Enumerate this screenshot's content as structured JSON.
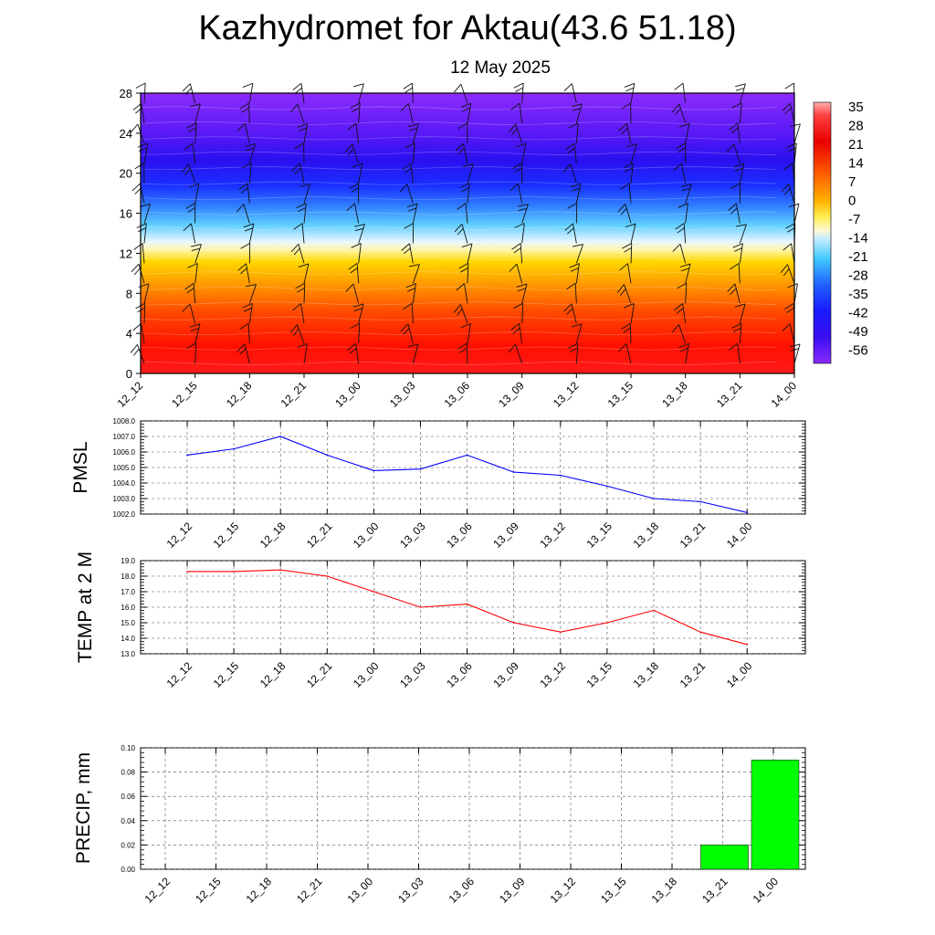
{
  "title": "Kazhydromet for Aktau(43.6 51.18)",
  "subtitle": "12 May 2025",
  "time_labels": [
    "12_12",
    "12_15",
    "12_18",
    "12_21",
    "13_00",
    "13_03",
    "13_06",
    "13_09",
    "13_12",
    "13_15",
    "13_18",
    "13_21",
    "14_00"
  ],
  "colorbar_labels": [
    "35",
    "28",
    "21",
    "14",
    "7",
    "0",
    "-7",
    "-14",
    "-21",
    "-28",
    "-35",
    "-42",
    "-49",
    "-56"
  ],
  "chart_data": [
    {
      "type": "heatmap",
      "ylim": [
        0,
        28
      ],
      "yticks": [
        "0",
        "4",
        "8",
        "12",
        "16",
        "20",
        "24",
        "28"
      ],
      "categories": [
        "12_12",
        "12_15",
        "12_18",
        "12_21",
        "13_00",
        "13_03",
        "13_06",
        "13_09",
        "13_12",
        "13_15",
        "13_18",
        "13_21",
        "14_00"
      ],
      "colorbar": [
        "35",
        "28",
        "21",
        "14",
        "7",
        "0",
        "-7",
        "-14",
        "-21",
        "-28",
        "-35",
        "-42",
        "-49",
        "-56"
      ]
    },
    {
      "type": "line",
      "ylabel": "PMSL",
      "ylim": [
        1002.0,
        1008.0
      ],
      "yticks": [
        "1002.0",
        "1003.0",
        "1004.0",
        "1005.0",
        "1006.0",
        "1007.0",
        "1008.0"
      ],
      "categories": [
        "12_12",
        "12_15",
        "12_18",
        "12_21",
        "13_00",
        "13_03",
        "13_06",
        "13_09",
        "13_12",
        "13_15",
        "13_18",
        "13_21",
        "14_00"
      ],
      "values": [
        1005.8,
        1006.2,
        1007.0,
        1005.8,
        1004.8,
        1004.9,
        1005.8,
        1004.7,
        1004.5,
        1003.8,
        1003.0,
        1002.8,
        1002.1
      ],
      "color": "#0000ff"
    },
    {
      "type": "line",
      "ylabel": "TEMP at 2 M",
      "ylim": [
        13.0,
        19.0
      ],
      "yticks": [
        "13.0",
        "14.0",
        "15.0",
        "16.0",
        "17.0",
        "18.0",
        "19.0"
      ],
      "categories": [
        "12_12",
        "12_15",
        "12_18",
        "12_21",
        "13_00",
        "13_03",
        "13_06",
        "13_09",
        "13_12",
        "13_15",
        "13_18",
        "13_21",
        "14_00"
      ],
      "values": [
        18.3,
        18.3,
        18.4,
        18.0,
        17.0,
        16.0,
        16.2,
        15.0,
        14.4,
        15.0,
        15.8,
        14.4,
        13.6
      ],
      "color": "#ff0000"
    },
    {
      "type": "bar",
      "ylabel": "PRECIP, mm",
      "ylim": [
        0,
        0.1
      ],
      "yticks": [
        "0.00",
        "0.02",
        "0.04",
        "0.06",
        "0.08",
        "0.10"
      ],
      "categories": [
        "12_12",
        "12_15",
        "12_18",
        "12_21",
        "13_00",
        "13_03",
        "13_06",
        "13_09",
        "13_12",
        "13_15",
        "13_18",
        "13_21",
        "14_00"
      ],
      "values": [
        0,
        0,
        0,
        0,
        0,
        0,
        0,
        0,
        0,
        0,
        0,
        0.02,
        0.09
      ],
      "color": "#00ff00"
    }
  ]
}
